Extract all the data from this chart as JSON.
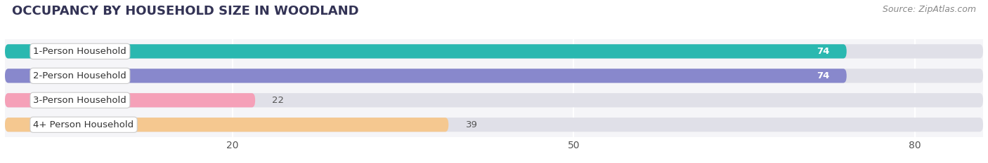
{
  "title": "OCCUPANCY BY HOUSEHOLD SIZE IN WOODLAND",
  "source": "Source: ZipAtlas.com",
  "categories": [
    "1-Person Household",
    "2-Person Household",
    "3-Person Household",
    "4+ Person Household"
  ],
  "values": [
    74,
    74,
    22,
    39
  ],
  "bar_colors": [
    "#2ab8b0",
    "#8888cc",
    "#f5a0b8",
    "#f5c890"
  ],
  "bar_bg_color": "#e0e0e8",
  "value_labels": [
    "74",
    "74",
    "22",
    "39"
  ],
  "xticks": [
    20,
    50,
    80
  ],
  "xmin": 0,
  "xmax": 86,
  "title_fontsize": 13,
  "source_fontsize": 9,
  "label_fontsize": 9.5,
  "value_fontsize": 9.5,
  "tick_fontsize": 10,
  "background_color": "#ffffff",
  "plot_bg_color": "#f5f5f8"
}
